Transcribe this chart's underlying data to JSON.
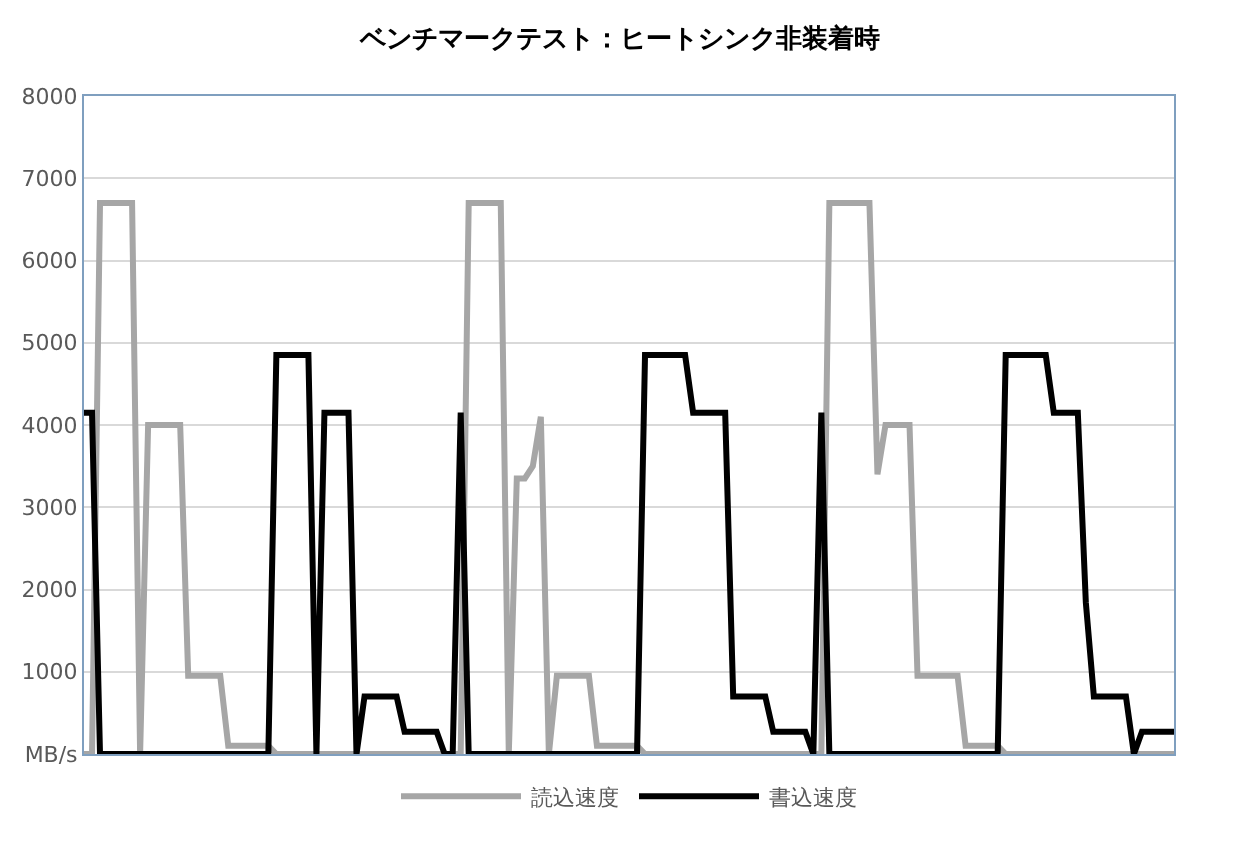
{
  "chart_data": {
    "type": "line",
    "title": "ベンチマークテスト：ヒートシンク非装着時",
    "categories": [
      null,
      null,
      null,
      null,
      null,
      null,
      null,
      null,
      null,
      null,
      null,
      null,
      null,
      null,
      null,
      null,
      null,
      null,
      null,
      null,
      null,
      null,
      null,
      null,
      null,
      null,
      null,
      null,
      null,
      null,
      null,
      null,
      null,
      null,
      null,
      null,
      null,
      null,
      null,
      null,
      null,
      null,
      null,
      null,
      null,
      null,
      null,
      null,
      null,
      null,
      null,
      null,
      null,
      null,
      null,
      null,
      null,
      null,
      null,
      null,
      null,
      null,
      null,
      null,
      null,
      null,
      null,
      null,
      null,
      null,
      null,
      null,
      null,
      null,
      null,
      null,
      null,
      null,
      null,
      null,
      null,
      null,
      null,
      null,
      null,
      null,
      null,
      null,
      null,
      null,
      null,
      null,
      null,
      null,
      null,
      null,
      null,
      null,
      null,
      null,
      null,
      null,
      null,
      null,
      null,
      null,
      null,
      null,
      null,
      null,
      null,
      null,
      null,
      null,
      null,
      null,
      null,
      null,
      null,
      null,
      null,
      null,
      null,
      null,
      null,
      null,
      null,
      null,
      null,
      null,
      null,
      null,
      null,
      null,
      null,
      null,
      null
    ],
    "series": [
      {
        "name": "読込速度",
        "color": "#a6a6a6",
        "values": [
          0,
          0,
          6700,
          6700,
          6700,
          6700,
          6700,
          0,
          4000,
          4000,
          4000,
          4000,
          4000,
          950,
          950,
          950,
          950,
          950,
          100,
          100,
          100,
          100,
          100,
          100,
          0,
          0,
          0,
          0,
          0,
          0,
          0,
          0,
          0,
          0,
          0,
          0,
          0,
          0,
          0,
          0,
          0,
          0,
          0,
          0,
          0,
          0,
          0,
          0,
          6700,
          6700,
          6700,
          6700,
          6700,
          0,
          3350,
          3350,
          3500,
          4100,
          0,
          950,
          950,
          950,
          950,
          950,
          100,
          100,
          100,
          100,
          100,
          100,
          0,
          0,
          0,
          0,
          0,
          0,
          0,
          0,
          0,
          0,
          0,
          0,
          0,
          0,
          0,
          0,
          0,
          0,
          0,
          0,
          0,
          0,
          0,
          6700,
          6700,
          6700,
          6700,
          6700,
          6700,
          3400,
          4000,
          4000,
          4000,
          4000,
          950,
          950,
          950,
          950,
          950,
          950,
          100,
          100,
          100,
          100,
          100,
          0,
          0,
          0,
          0,
          0,
          0,
          0,
          0,
          0,
          0,
          0,
          0,
          0,
          0,
          0,
          0,
          0,
          0,
          0,
          0,
          0,
          0
        ]
      },
      {
        "name": "書込速度",
        "color": "#000000",
        "values": [
          4150,
          4150,
          0,
          0,
          0,
          0,
          0,
          0,
          0,
          0,
          0,
          0,
          0,
          0,
          0,
          0,
          0,
          0,
          0,
          0,
          0,
          0,
          0,
          0,
          4850,
          4850,
          4850,
          4850,
          4850,
          0,
          4150,
          4150,
          4150,
          4150,
          0,
          700,
          700,
          700,
          700,
          700,
          270,
          270,
          270,
          270,
          270,
          0,
          0,
          4150,
          0,
          0,
          0,
          0,
          0,
          0,
          0,
          0,
          0,
          0,
          0,
          0,
          0,
          0,
          0,
          0,
          0,
          0,
          0,
          0,
          0,
          0,
          4850,
          4850,
          4850,
          4850,
          4850,
          4850,
          4150,
          4150,
          4150,
          4150,
          4150,
          700,
          700,
          700,
          700,
          700,
          270,
          270,
          270,
          270,
          270,
          0,
          4150,
          0,
          0,
          0,
          0,
          0,
          0,
          0,
          0,
          0,
          0,
          0,
          0,
          0,
          0,
          0,
          0,
          0,
          0,
          0,
          0,
          0,
          0,
          4850,
          4850,
          4850,
          4850,
          4850,
          4850,
          4150,
          4150,
          4150,
          4150,
          1840,
          700,
          700,
          700,
          700,
          700,
          0,
          270,
          270,
          270,
          270,
          270
        ]
      }
    ],
    "ylim": [
      0,
      8000
    ],
    "yticks": [
      {
        "value": 0,
        "label": "MB/s"
      },
      1000,
      2000,
      3000,
      4000,
      5000,
      6000,
      7000,
      8000
    ],
    "grid": "y",
    "legend": "bottom",
    "tick_labels": "y",
    "marker": "none",
    "line_style": "solid"
  }
}
